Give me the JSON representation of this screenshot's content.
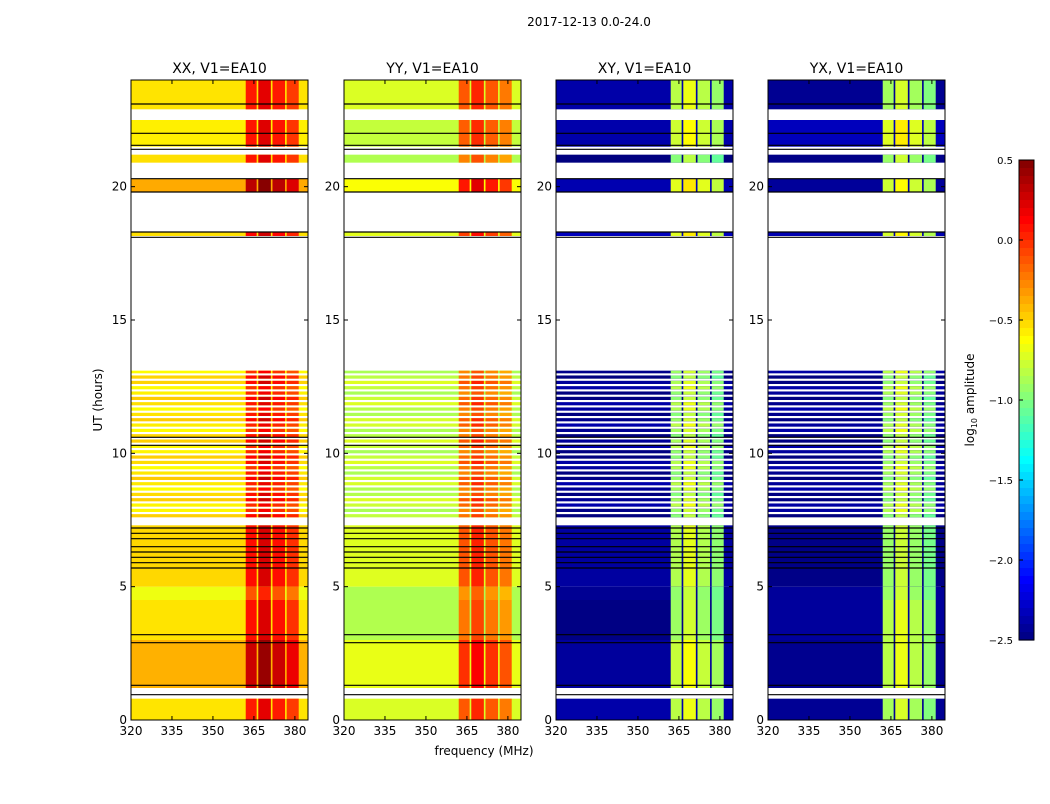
{
  "chart_data": {
    "type": "heatmap",
    "title": "2017-12-13 0.0-24.0",
    "xlabel": "frequency (MHz)",
    "ylabel": "UT (hours)",
    "xlim": [
      320,
      384.8
    ],
    "ylim": [
      0,
      24
    ],
    "xticks": [
      "320",
      "335",
      "350",
      "365",
      "380"
    ],
    "xtick_values": [
      320,
      335,
      350,
      365,
      380
    ],
    "yticks": [
      "0",
      "5",
      "10",
      "15",
      "20"
    ],
    "ytick_values": [
      0,
      5,
      10,
      15,
      20
    ],
    "colorbar": {
      "label_main": "log",
      "label_sub": "10",
      "label_rest": " amplitude",
      "range": [
        -2.5,
        0.5
      ],
      "ticks": [
        "0.5",
        "0.0",
        "−0.5",
        "−1.0",
        "−1.5",
        "−2.0",
        "−2.5"
      ],
      "tick_values": [
        0.5,
        0.0,
        -0.5,
        -1.0,
        -1.5,
        -2.0,
        -2.5
      ],
      "colormap": "jet"
    },
    "band_columns_mhz": [
      [
        362,
        366
      ],
      [
        366.6,
        371.2
      ],
      [
        371.8,
        376.4
      ],
      [
        377,
        381.4
      ]
    ],
    "panels": [
      {
        "title": "XX, V1=EA10",
        "base_log_amp": -0.55,
        "band_log_amp": 0.05
      },
      {
        "title": "YY, V1=EA10",
        "base_log_amp": -0.8,
        "band_log_amp": -0.2
      },
      {
        "title": "XY, V1=EA10",
        "base_log_amp": -2.45,
        "band_log_amp": -0.9
      },
      {
        "title": "YX, V1=EA10",
        "base_log_amp": -2.45,
        "band_log_amp": -0.9
      }
    ],
    "time_segments_hours": [
      [
        0,
        0.8,
        "data",
        0
      ],
      [
        0.8,
        1.2,
        "gap",
        0
      ],
      [
        1.2,
        3.0,
        "data",
        0.15
      ],
      [
        3.0,
        4.5,
        "data",
        0.05
      ],
      [
        4.5,
        5.0,
        "data",
        -0.1
      ],
      [
        5.0,
        7.3,
        "data",
        0
      ],
      [
        7.3,
        7.6,
        "gap",
        0
      ],
      [
        7.6,
        13.1,
        "striped",
        0
      ],
      [
        13.1,
        18.15,
        "gap",
        0
      ],
      [
        18.15,
        18.3,
        "data",
        0.1
      ],
      [
        18.3,
        19.8,
        "gap",
        0
      ],
      [
        19.8,
        20.3,
        "data",
        0.2
      ],
      [
        20.3,
        20.9,
        "gap",
        0
      ],
      [
        20.9,
        21.2,
        "data",
        0
      ],
      [
        21.2,
        21.5,
        "gap",
        0
      ],
      [
        21.5,
        22.5,
        "data",
        0.1
      ],
      [
        22.5,
        22.9,
        "gap",
        0
      ],
      [
        22.9,
        24,
        "data",
        0
      ]
    ],
    "flag_lines_hours": [
      0.95,
      1.3,
      2.9,
      3.2,
      5.7,
      5.9,
      6.1,
      6.3,
      6.5,
      6.8,
      7.0,
      7.2,
      10.3,
      10.6,
      18.1,
      18.3,
      19.8,
      20.3,
      21.4,
      21.55,
      22.0,
      23.1
    ]
  }
}
